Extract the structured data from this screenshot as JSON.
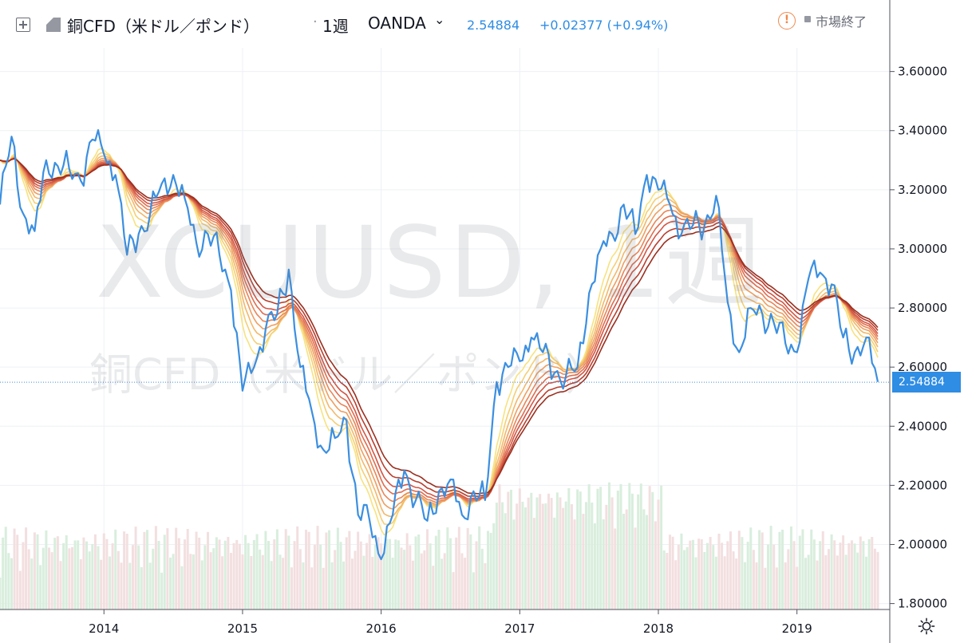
{
  "header": {
    "symbol_title": "銅CFD（米ドル／ポンド）",
    "separator": "·",
    "interval": "1週",
    "broker": "OANDA",
    "last_price": "2.54884",
    "change": "+0.02377 (+0.94%)",
    "status": "市場終了",
    "icons": [
      "collapse-icon",
      "flag-icon",
      "chevron-down-icon",
      "alert-icon",
      "gear-icon"
    ]
  },
  "watermark": {
    "ticker": "XCUUSD, 1週",
    "name": "銅CFD（米ドル／ポンド）"
  },
  "colors": {
    "price_line": "#3b8fe0",
    "ribbon": [
      "#f7e27f",
      "#f5cf74",
      "#f2b86a",
      "#ee9f61",
      "#e88658",
      "#df6d4e",
      "#d25645",
      "#b8402f",
      "#9a2f1f"
    ],
    "volume_up": "#d9eedd",
    "volume_down": "#f3dfe0",
    "grid": "#eef0f4"
  },
  "chart_data": {
    "type": "line",
    "title": "",
    "y_axis": {
      "range": [
        1.78,
        3.68
      ],
      "ticks": [
        "3.60000",
        "3.40000",
        "3.20000",
        "3.00000",
        "2.80000",
        "2.60000",
        "2.40000",
        "2.20000",
        "2.00000",
        "1.80000"
      ],
      "tick_values": [
        3.6,
        3.4,
        3.2,
        3.0,
        2.8,
        2.6,
        2.4,
        2.2,
        2.0,
        1.8
      ]
    },
    "x_axis": {
      "range": [
        "2013-04",
        "2019-08"
      ],
      "ticks": [
        "2014",
        "2015",
        "2016",
        "2017",
        "2018",
        "2019"
      ],
      "tick_dates": [
        "2014-01",
        "2015-01",
        "2016-01",
        "2017-01",
        "2018-01",
        "2019-01"
      ]
    },
    "last_price_line": 2.54884,
    "series": [
      {
        "name": "",
        "points": [
          [
            "2013-04",
            3.15
          ],
          [
            "2013-05",
            3.38
          ],
          [
            "2013-06",
            3.12
          ],
          [
            "2013-07",
            3.06
          ],
          [
            "2013-08",
            3.3
          ],
          [
            "2013-09",
            3.28
          ],
          [
            "2013-10",
            3.27
          ],
          [
            "2013-11",
            3.23
          ],
          [
            "2013-12",
            3.37
          ],
          [
            "2014-01",
            3.32
          ],
          [
            "2014-02",
            3.25
          ],
          [
            "2014-03",
            2.98
          ],
          [
            "2014-04",
            3.05
          ],
          [
            "2014-05",
            3.12
          ],
          [
            "2014-06",
            3.22
          ],
          [
            "2014-07",
            3.25
          ],
          [
            "2014-08",
            3.17
          ],
          [
            "2014-09",
            3.02
          ],
          [
            "2014-10",
            3.05
          ],
          [
            "2014-11",
            2.98
          ],
          [
            "2014-12",
            2.86
          ],
          [
            "2015-01",
            2.52
          ],
          [
            "2015-02",
            2.6
          ],
          [
            "2015-03",
            2.73
          ],
          [
            "2015-04",
            2.78
          ],
          [
            "2015-05",
            2.93
          ],
          [
            "2015-06",
            2.6
          ],
          [
            "2015-07",
            2.45
          ],
          [
            "2015-08",
            2.32
          ],
          [
            "2015-09",
            2.36
          ],
          [
            "2015-10",
            2.42
          ],
          [
            "2015-11",
            2.1
          ],
          [
            "2015-12",
            2.08
          ],
          [
            "2016-01",
            1.95
          ],
          [
            "2016-02",
            2.1
          ],
          [
            "2016-03",
            2.25
          ],
          [
            "2016-04",
            2.15
          ],
          [
            "2016-05",
            2.08
          ],
          [
            "2016-06",
            2.18
          ],
          [
            "2016-07",
            2.22
          ],
          [
            "2016-08",
            2.1
          ],
          [
            "2016-09",
            2.18
          ],
          [
            "2016-10",
            2.15
          ],
          [
            "2016-11",
            2.55
          ],
          [
            "2016-12",
            2.6
          ],
          [
            "2017-01",
            2.62
          ],
          [
            "2017-02",
            2.7
          ],
          [
            "2017-03",
            2.65
          ],
          [
            "2017-04",
            2.58
          ],
          [
            "2017-05",
            2.57
          ],
          [
            "2017-06",
            2.6
          ],
          [
            "2017-07",
            2.85
          ],
          [
            "2017-08",
            3.0
          ],
          [
            "2017-09",
            3.05
          ],
          [
            "2017-10",
            3.15
          ],
          [
            "2017-11",
            3.05
          ],
          [
            "2017-12",
            3.25
          ],
          [
            "2018-01",
            3.2
          ],
          [
            "2018-02",
            3.15
          ],
          [
            "2018-03",
            3.05
          ],
          [
            "2018-04",
            3.08
          ],
          [
            "2018-05",
            3.08
          ],
          [
            "2018-06",
            3.18
          ],
          [
            "2018-07",
            2.82
          ],
          [
            "2018-08",
            2.65
          ],
          [
            "2018-09",
            2.8
          ],
          [
            "2018-10",
            2.78
          ],
          [
            "2018-11",
            2.75
          ],
          [
            "2018-12",
            2.68
          ],
          [
            "2019-01",
            2.65
          ],
          [
            "2019-02",
            2.9
          ],
          [
            "2019-03",
            2.92
          ],
          [
            "2019-04",
            2.88
          ],
          [
            "2019-05",
            2.7
          ],
          [
            "2019-06",
            2.65
          ],
          [
            "2019-07",
            2.7
          ],
          [
            "2019-08",
            2.55
          ]
        ]
      }
    ]
  }
}
